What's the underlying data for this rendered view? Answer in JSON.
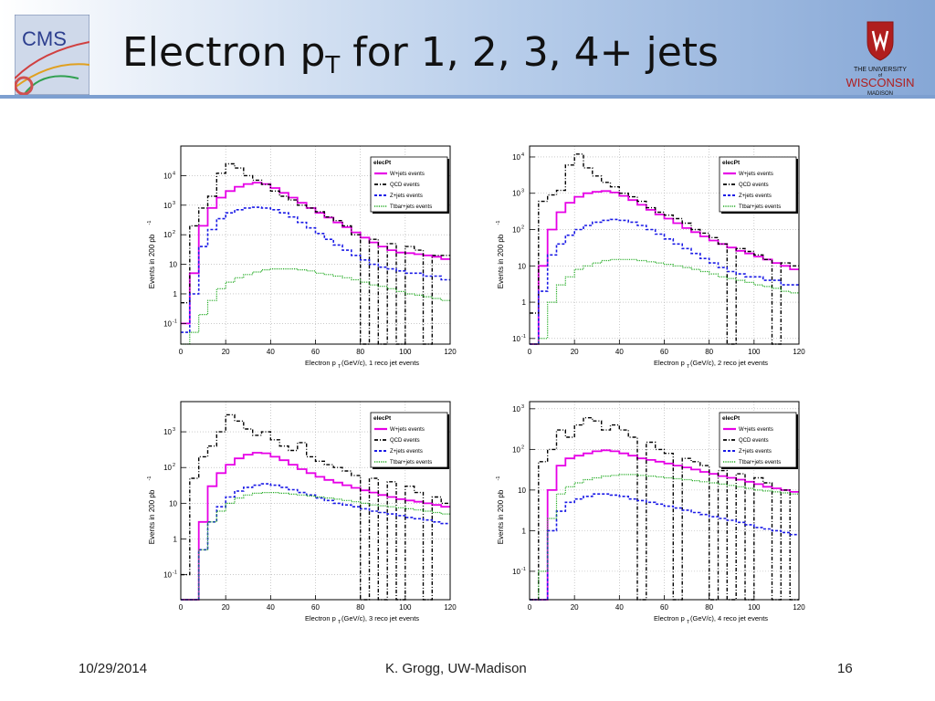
{
  "slide": {
    "title_main": "Electron p",
    "title_sub": "T",
    "title_rest": " for 1, 2, 3, 4+ jets",
    "footer_date": "10/29/2014",
    "footer_author": "K. Grogg, UW-Madison",
    "footer_page": "16"
  },
  "logos": {
    "cms_text": "CMS",
    "uw_line1": "THE UNIVERSITY",
    "uw_line2": "of",
    "uw_line3": "WISCONSIN",
    "uw_line4": "MADISON"
  },
  "colors": {
    "wjets": "#e600e6",
    "qcd": "#000000",
    "zjets": "#1a1ae6",
    "tt": "#22aa22"
  },
  "chart_data": [
    {
      "type": "line",
      "hist_name": "elecPt",
      "ylabel": "Events in 200 pb",
      "ylabel_sup": "-1",
      "xlabel": "Electron p",
      "xlabel_sub": "T",
      "xlabel_rest": " (GeV/c),  1 reco jet events",
      "log_y": true,
      "xlim": [
        0,
        120
      ],
      "ylim": [
        0.02,
        100000
      ],
      "xticks": [
        0,
        20,
        40,
        60,
        80,
        100,
        120
      ],
      "yticks": [
        {
          "v": 0.1,
          "b": "10",
          "e": "-1"
        },
        {
          "v": 1,
          "b": "1",
          "e": ""
        },
        {
          "v": 10,
          "b": "10",
          "e": ""
        },
        {
          "v": 100,
          "b": "10",
          "e": "2"
        },
        {
          "v": 1000,
          "b": "10",
          "e": "3"
        },
        {
          "v": 10000,
          "b": "10",
          "e": "4"
        }
      ],
      "x": [
        2,
        6,
        10,
        14,
        18,
        22,
        26,
        30,
        34,
        38,
        42,
        46,
        50,
        54,
        58,
        62,
        66,
        70,
        74,
        78,
        82,
        86,
        90,
        94,
        98,
        102,
        106,
        110,
        114,
        118
      ],
      "legend": [
        "W+jets events",
        "QCD events",
        "Z+jets events",
        "Ttbar+jets events"
      ],
      "series": [
        {
          "name": "W+jets events",
          "key": "wjets",
          "values": [
            0.1,
            5,
            200,
            800,
            1800,
            3000,
            4200,
            5200,
            5800,
            5200,
            3800,
            2600,
            1800,
            1200,
            800,
            550,
            380,
            260,
            180,
            120,
            80,
            55,
            40,
            30,
            25,
            24,
            22,
            20,
            18,
            15
          ]
        },
        {
          "name": "QCD events",
          "key": "qcd",
          "values": [
            0.5,
            200,
            800,
            2000,
            12000,
            25000,
            18000,
            10000,
            7000,
            5000,
            3000,
            2000,
            1500,
            1000,
            800,
            600,
            400,
            300,
            200,
            100,
            0.02,
            70,
            0.02,
            50,
            0.02,
            40,
            30,
            0.02,
            20,
            20
          ]
        },
        {
          "name": "Z+jets events",
          "key": "zjets",
          "values": [
            0.05,
            1,
            40,
            150,
            350,
            550,
            700,
            800,
            850,
            800,
            700,
            550,
            400,
            260,
            170,
            110,
            70,
            45,
            30,
            20,
            14,
            10,
            8,
            7,
            6,
            5,
            5,
            4,
            4,
            3
          ]
        },
        {
          "name": "Ttbar+jets events",
          "key": "tt",
          "values": [
            0.02,
            0.05,
            0.2,
            0.6,
            1.5,
            2.5,
            3.5,
            4.5,
            5.5,
            6.5,
            7,
            7,
            7,
            6.5,
            6,
            5,
            4.5,
            4,
            3.5,
            3,
            2.5,
            2,
            1.8,
            1.5,
            1.2,
            1,
            0.9,
            0.8,
            0.7,
            0.6
          ]
        }
      ]
    },
    {
      "type": "line",
      "hist_name": "elecPt",
      "ylabel": "Events in 200 pb",
      "ylabel_sup": "-1",
      "xlabel": "Electron p",
      "xlabel_sub": "T",
      "xlabel_rest": " (GeV/c),  2 reco jet events",
      "log_y": true,
      "xlim": [
        0,
        120
      ],
      "ylim": [
        0.07,
        20000
      ],
      "xticks": [
        0,
        20,
        40,
        60,
        80,
        100,
        120
      ],
      "yticks": [
        {
          "v": 0.1,
          "b": "10",
          "e": "-1"
        },
        {
          "v": 1,
          "b": "1",
          "e": ""
        },
        {
          "v": 10,
          "b": "10",
          "e": ""
        },
        {
          "v": 100,
          "b": "10",
          "e": "2"
        },
        {
          "v": 1000,
          "b": "10",
          "e": "3"
        },
        {
          "v": 10000,
          "b": "10",
          "e": "4"
        }
      ],
      "x": [
        2,
        6,
        10,
        14,
        18,
        22,
        26,
        30,
        34,
        38,
        42,
        46,
        50,
        54,
        58,
        62,
        66,
        70,
        74,
        78,
        82,
        86,
        90,
        94,
        98,
        102,
        106,
        110,
        114,
        118
      ],
      "legend": [
        "W+jets events",
        "QCD events",
        "Z+jets events",
        "Ttbar+jets events"
      ],
      "series": [
        {
          "name": "W+jets events",
          "key": "wjets",
          "values": [
            0.07,
            10,
            100,
            300,
            550,
            800,
            1000,
            1100,
            1150,
            1050,
            850,
            650,
            480,
            350,
            260,
            200,
            150,
            110,
            85,
            65,
            50,
            40,
            32,
            26,
            22,
            18,
            15,
            12,
            10,
            8
          ]
        },
        {
          "name": "QCD events",
          "key": "qcd",
          "values": [
            0.5,
            600,
            900,
            1200,
            6000,
            12000,
            5000,
            3000,
            2000,
            1500,
            1000,
            800,
            600,
            400,
            300,
            250,
            200,
            150,
            100,
            80,
            60,
            40,
            0.07,
            30,
            25,
            20,
            15,
            0.07,
            12,
            10
          ]
        },
        {
          "name": "Z+jets events",
          "key": "zjets",
          "values": [
            0.07,
            2,
            20,
            40,
            70,
            100,
            130,
            160,
            180,
            190,
            180,
            160,
            130,
            100,
            75,
            55,
            40,
            30,
            22,
            16,
            12,
            9,
            7,
            6,
            5,
            5,
            4,
            4,
            3,
            3
          ]
        },
        {
          "name": "Ttbar+jets events",
          "key": "tt",
          "values": [
            0.07,
            0.1,
            1,
            3,
            5,
            8,
            10,
            12,
            14,
            15,
            15,
            15,
            14,
            13,
            12,
            11,
            10,
            9,
            8,
            7,
            6,
            5,
            4.5,
            4,
            3.5,
            3,
            2.7,
            2.4,
            2,
            1.8
          ]
        }
      ]
    },
    {
      "type": "line",
      "hist_name": "elecPt",
      "ylabel": "Events in 200 pb",
      "ylabel_sup": "-1",
      "xlabel": "Electron p",
      "xlabel_sub": "T",
      "xlabel_rest": " (GeV/c),  3 reco jet events",
      "log_y": true,
      "xlim": [
        0,
        120
      ],
      "ylim": [
        0.02,
        7000
      ],
      "xticks": [
        0,
        20,
        40,
        60,
        80,
        100,
        120
      ],
      "yticks": [
        {
          "v": 0.1,
          "b": "10",
          "e": "-1"
        },
        {
          "v": 1,
          "b": "1",
          "e": ""
        },
        {
          "v": 10,
          "b": "10",
          "e": ""
        },
        {
          "v": 100,
          "b": "10",
          "e": "2"
        },
        {
          "v": 1000,
          "b": "10",
          "e": "3"
        }
      ],
      "x": [
        2,
        6,
        10,
        14,
        18,
        22,
        26,
        30,
        34,
        38,
        42,
        46,
        50,
        54,
        58,
        62,
        66,
        70,
        74,
        78,
        82,
        86,
        90,
        94,
        98,
        102,
        106,
        110,
        114,
        118
      ],
      "legend": [
        "W+jets events",
        "QCD events",
        "Z+jets events",
        "Ttbar+jets events"
      ],
      "series": [
        {
          "name": "W+jets events",
          "key": "wjets",
          "values": [
            0.02,
            0.02,
            3,
            30,
            70,
            120,
            180,
            230,
            260,
            250,
            200,
            160,
            120,
            90,
            70,
            55,
            45,
            38,
            32,
            27,
            23,
            20,
            17,
            15,
            13,
            12,
            11,
            10,
            9,
            8
          ]
        },
        {
          "name": "QCD events",
          "key": "qcd",
          "values": [
            0.1,
            50,
            200,
            400,
            1000,
            3000,
            2000,
            1200,
            800,
            1000,
            600,
            400,
            300,
            500,
            200,
            150,
            120,
            100,
            80,
            60,
            0.02,
            50,
            0.02,
            40,
            0.02,
            30,
            20,
            0.02,
            15,
            10
          ]
        },
        {
          "name": "Z+jets events",
          "key": "zjets",
          "values": [
            0.02,
            0.02,
            0.5,
            3,
            8,
            15,
            22,
            28,
            32,
            35,
            32,
            28,
            24,
            20,
            17,
            14,
            12,
            10,
            9,
            8,
            7,
            6,
            5.5,
            5,
            4.5,
            4,
            3.7,
            3.4,
            3,
            2.7
          ]
        },
        {
          "name": "Ttbar+jets events",
          "key": "tt",
          "values": [
            0.02,
            0.02,
            0.5,
            3,
            6,
            10,
            14,
            17,
            19,
            20,
            20,
            19,
            18,
            17,
            16,
            15,
            14,
            13,
            12,
            11,
            10,
            9,
            8.5,
            8,
            7.5,
            7,
            6.5,
            6,
            5.5,
            5
          ]
        }
      ]
    },
    {
      "type": "line",
      "hist_name": "elecPt",
      "ylabel": "Events in 200 pb",
      "ylabel_sup": "-1",
      "xlabel": "Electron p",
      "xlabel_sub": "T",
      "xlabel_rest": " (GeV/c),  4 reco jet events",
      "log_y": true,
      "xlim": [
        0,
        120
      ],
      "ylim": [
        0.02,
        1500
      ],
      "xticks": [
        0,
        20,
        40,
        60,
        80,
        100,
        120
      ],
      "yticks": [
        {
          "v": 0.1,
          "b": "10",
          "e": "-1"
        },
        {
          "v": 1,
          "b": "1",
          "e": ""
        },
        {
          "v": 10,
          "b": "10",
          "e": ""
        },
        {
          "v": 100,
          "b": "10",
          "e": "2"
        },
        {
          "v": 1000,
          "b": "10",
          "e": "3"
        }
      ],
      "x": [
        2,
        6,
        10,
        14,
        18,
        22,
        26,
        30,
        34,
        38,
        42,
        46,
        50,
        54,
        58,
        62,
        66,
        70,
        74,
        78,
        82,
        86,
        90,
        94,
        98,
        102,
        106,
        110,
        114,
        118
      ],
      "legend": [
        "W+jets events",
        "QCD events",
        "Z+jets events",
        "Ttbar+jets events"
      ],
      "series": [
        {
          "name": "W+jets events",
          "key": "wjets",
          "values": [
            0.02,
            0.02,
            10,
            40,
            60,
            70,
            80,
            90,
            95,
            90,
            80,
            70,
            60,
            55,
            50,
            45,
            40,
            36,
            32,
            28,
            25,
            22,
            20,
            18,
            16,
            14,
            12,
            11,
            10,
            9
          ]
        },
        {
          "name": "QCD events",
          "key": "qcd",
          "values": [
            0.02,
            50,
            100,
            300,
            200,
            400,
            600,
            500,
            300,
            400,
            300,
            200,
            0.02,
            150,
            100,
            80,
            0.02,
            60,
            50,
            40,
            0.02,
            30,
            0.02,
            25,
            0.02,
            20,
            15,
            0.02,
            10,
            0.02
          ]
        },
        {
          "name": "Z+jets events",
          "key": "zjets",
          "values": [
            0.02,
            0.02,
            1,
            3,
            5,
            6,
            7,
            8,
            8,
            7.5,
            7,
            6,
            5.5,
            5,
            4.5,
            4,
            3.6,
            3.2,
            2.8,
            2.5,
            2.2,
            2,
            1.8,
            1.6,
            1.4,
            1.2,
            1.1,
            1,
            0.9,
            0.8
          ]
        },
        {
          "name": "Ttbar+jets events",
          "key": "tt",
          "values": [
            0.02,
            0.1,
            2,
            8,
            12,
            15,
            18,
            20,
            22,
            23,
            24,
            24,
            23,
            22,
            21,
            20,
            19,
            18,
            17,
            16,
            15,
            14,
            13,
            12,
            11,
            10,
            9.5,
            9,
            8.5,
            8
          ]
        }
      ]
    }
  ]
}
